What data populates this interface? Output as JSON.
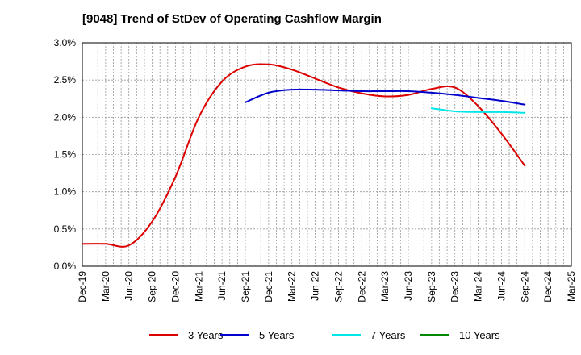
{
  "chart_data": {
    "type": "line",
    "title": "[9048]  Trend of StDev of Operating Cashflow Margin",
    "xlabel": "",
    "ylabel": "",
    "ylim": [
      0,
      3.0
    ],
    "y_ticks": [
      "0.0%",
      "0.5%",
      "1.0%",
      "1.5%",
      "2.0%",
      "2.5%",
      "3.0%"
    ],
    "x_ticks": [
      "Dec-19",
      "Mar-20",
      "Jun-20",
      "Sep-20",
      "Dec-20",
      "Mar-21",
      "Jun-21",
      "Sep-21",
      "Dec-21",
      "Mar-22",
      "Jun-22",
      "Sep-22",
      "Dec-22",
      "Mar-23",
      "Jun-23",
      "Sep-23",
      "Dec-23",
      "Mar-24",
      "Jun-24",
      "Sep-24",
      "Dec-24",
      "Mar-25"
    ],
    "grid": true,
    "legend_position": "bottom",
    "series": [
      {
        "name": "3 Years",
        "color": "#dd0000",
        "x": [
          "Dec-19",
          "Mar-20",
          "Jun-20",
          "Sep-20",
          "Dec-20",
          "Mar-21",
          "Jun-21",
          "Sep-21",
          "Dec-21",
          "Mar-22",
          "Jun-22",
          "Sep-22",
          "Dec-22",
          "Mar-23",
          "Jun-23",
          "Sep-23",
          "Dec-23",
          "Mar-24",
          "Jun-24",
          "Sep-24"
        ],
        "values": [
          0.3,
          0.3,
          0.28,
          0.6,
          1.2,
          2.0,
          2.48,
          2.68,
          2.71,
          2.64,
          2.52,
          2.4,
          2.32,
          2.28,
          2.3,
          2.38,
          2.4,
          2.15,
          1.78,
          1.35
        ]
      },
      {
        "name": "5 Years",
        "color": "#0000cc",
        "x": [
          "Sep-21",
          "Dec-21",
          "Mar-22",
          "Jun-22",
          "Sep-22",
          "Dec-22",
          "Mar-23",
          "Jun-23",
          "Sep-23",
          "Dec-23",
          "Mar-24",
          "Jun-24",
          "Sep-24"
        ],
        "values": [
          2.2,
          2.33,
          2.37,
          2.37,
          2.36,
          2.35,
          2.35,
          2.35,
          2.33,
          2.3,
          2.26,
          2.22,
          2.17
        ]
      },
      {
        "name": "7 Years",
        "color": "#00e5e5",
        "x": [
          "Sep-23",
          "Dec-23",
          "Mar-24",
          "Jun-24",
          "Sep-24"
        ],
        "values": [
          2.12,
          2.08,
          2.07,
          2.07,
          2.06
        ]
      },
      {
        "name": "10 Years",
        "color": "#008800",
        "x": [],
        "values": []
      }
    ]
  }
}
